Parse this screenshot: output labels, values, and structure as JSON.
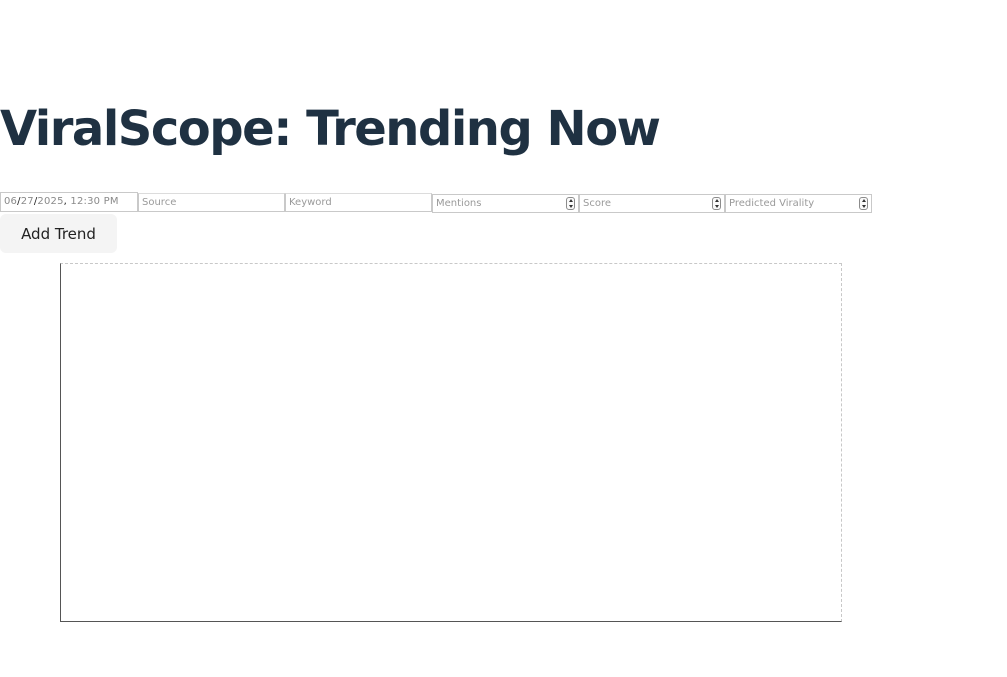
{
  "header": {
    "title": "ViralScope: Trending Now"
  },
  "form": {
    "date": {
      "month": "06",
      "day": "27",
      "year": "2025",
      "time": "12:30 PM"
    },
    "source_placeholder": "Source",
    "keyword_placeholder": "Keyword",
    "mentions_placeholder": "Mentions",
    "score_placeholder": "Score",
    "virality_placeholder": "Predicted Virality",
    "add_button_label": "Add Trend"
  },
  "colors": {
    "title": "#1f3142",
    "button_bg": "#f4f4f4"
  }
}
